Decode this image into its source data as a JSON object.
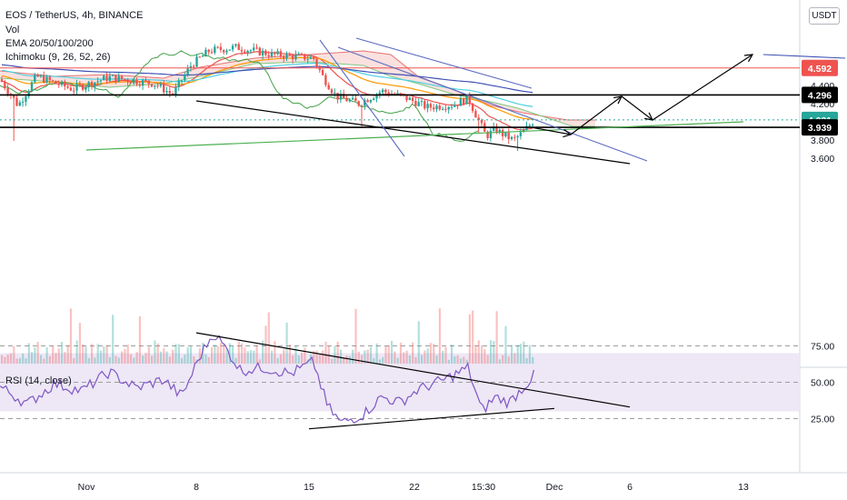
{
  "header": {
    "symbol_line": "EOS / TetherUS, 4h, BINANCE",
    "vol_label": "Vol",
    "ema_label": "EMA 20/50/100/200",
    "ichimoku_label": "Ichimoku (9, 26, 52, 26)",
    "currency_button": "USDT"
  },
  "rsi_panel": {
    "label": "RSI (14, close)",
    "levels": [
      75,
      50,
      25
    ],
    "level_labels": [
      "75.00",
      "50.00",
      "25.00"
    ]
  },
  "price_axis": {
    "ticks": [
      4.4,
      4.2,
      3.8,
      3.6
    ],
    "tick_labels": [
      "4.400",
      "4.200",
      "3.800",
      "3.600"
    ]
  },
  "price_tags": [
    {
      "label": "4.592",
      "value": 4.592,
      "style": "red"
    },
    {
      "label": "4.296",
      "value": 4.296,
      "style": "black"
    },
    {
      "label": "4.021",
      "value": 4.021,
      "style": "teal"
    },
    {
      "label": "3.939",
      "value": 3.939,
      "style": "black"
    }
  ],
  "time_axis": {
    "labels": [
      "Nov",
      "8",
      "15",
      "22",
      "15:30",
      "Dec",
      "6",
      "13"
    ]
  },
  "colors": {
    "bull": "#26a69a",
    "bear": "#ef5350",
    "resistance_line": "#ef5350",
    "horizontal_level": "#000000",
    "current_price": "#26a69a",
    "rsi_line": "#7e57c2",
    "rsi_band": "#ede7f6",
    "ema20": "#ef5350",
    "ema50": "#ff9800",
    "ema100": "#4dd0e1",
    "ema200": "#3f51b5",
    "tenkan": "#43a047",
    "cloud_bear": "#f8d7d4",
    "cloud_bull": "#c8e6c9"
  },
  "chart_data": [
    {
      "type": "line",
      "panel": "price",
      "title": "EOS / TetherUS, 4h, BINANCE",
      "ylim": [
        3.5,
        4.75
      ],
      "y_unit": "USDT",
      "x_categories": [
        "Nov",
        "8",
        "15",
        "22",
        "15:30",
        "Dec",
        "6",
        "13"
      ],
      "horizontal_levels": [
        4.592,
        4.296,
        3.939
      ],
      "current_price": 4.021,
      "projected_path_prices": [
        3.939,
        3.86,
        4.28,
        4.02,
        4.74
      ],
      "trendlines": [
        {
          "name": "lower_channel",
          "from": [
            "8",
            4.23
          ],
          "to": [
            "6",
            3.54
          ]
        },
        {
          "name": "long_support",
          "from": [
            "Nov",
            3.69
          ],
          "to": [
            "13",
            4.0
          ]
        }
      ]
    },
    {
      "type": "line",
      "panel": "rsi",
      "title": "RSI (14, close)",
      "ylim": [
        15,
        90
      ],
      "bands": [
        30,
        70
      ],
      "level_lines": [
        75,
        50,
        25
      ],
      "trendlines": [
        {
          "name": "rsi_resistance",
          "from": [
            "8",
            84
          ],
          "to": [
            "6",
            33
          ]
        },
        {
          "name": "rsi_support",
          "from": [
            "15",
            18
          ],
          "to": [
            "Dec",
            32
          ]
        }
      ]
    }
  ]
}
